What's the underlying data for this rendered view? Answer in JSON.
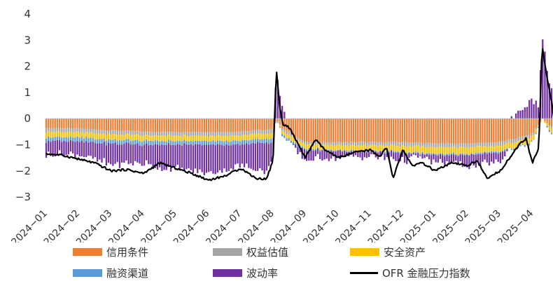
{
  "chart_data": {
    "type": "bar",
    "title": "",
    "xlabel": "",
    "ylabel": "",
    "ylim": [
      -3,
      4
    ],
    "y_ticks": [
      "4",
      "3",
      "2",
      "1",
      "0",
      "−1",
      "−2",
      "−3"
    ],
    "x_ticks": [
      "2024−01",
      "2024−02",
      "2024−03",
      "2024−04",
      "2024−05",
      "2024−06",
      "2024−07",
      "2024−08",
      "2024−09",
      "2024−10",
      "2024−11",
      "2024−12",
      "2025−01",
      "2025−02",
      "2025−03",
      "2025−04"
    ],
    "stacked": true,
    "colors": {
      "credit": "#ed7d31",
      "equity": "#a5a5a5",
      "safe": "#ffc000",
      "funding": "#5b9bd5",
      "volatility": "#7030a0",
      "index": "#000000"
    },
    "legend": {
      "credit": "信用条件",
      "equity": "权益估值",
      "safe": "安全资产",
      "funding": "融资渠道",
      "volatility": "波动率",
      "index": "OFR 金融压力指数"
    },
    "keyframes_note": "monthly approximate values; daily series interpolated",
    "series": [
      {
        "name": "信用条件",
        "key": "credit",
        "t": [
          0,
          1,
          2,
          3,
          4,
          5,
          6,
          7,
          7.1,
          7.3,
          8,
          9,
          10,
          11,
          12,
          13,
          14,
          15,
          15.3,
          15.7
        ],
        "values": [
          -0.35,
          -0.38,
          -0.45,
          -0.5,
          -0.5,
          -0.5,
          -0.5,
          -0.4,
          0,
          -0.4,
          -0.9,
          -0.9,
          -0.9,
          -0.9,
          -0.95,
          -0.95,
          -0.9,
          -0.6,
          0,
          -0.4
        ]
      },
      {
        "name": "权益估值",
        "key": "equity",
        "t": [
          0,
          7,
          7.1,
          7.3,
          8,
          12,
          13,
          14,
          15,
          15.3,
          15.7
        ],
        "values": [
          -0.15,
          -0.15,
          0,
          -0.1,
          -0.1,
          -0.15,
          -0.15,
          -0.15,
          -0.1,
          0,
          -0.1
        ]
      },
      {
        "name": "安全资产",
        "key": "safe",
        "t": [
          0,
          7,
          7.1,
          7.3,
          8,
          12,
          13,
          14,
          15,
          15.3,
          15.7
        ],
        "values": [
          -0.2,
          -0.2,
          0,
          -0.15,
          -0.15,
          -0.25,
          -0.25,
          -0.2,
          -0.2,
          0,
          -0.25
        ]
      },
      {
        "name": "融资渠道",
        "key": "funding",
        "t": [
          0,
          7,
          7.1,
          7.3,
          8,
          12,
          13,
          14,
          15,
          15.3,
          15.7
        ],
        "values": [
          -0.15,
          -0.15,
          0,
          -0.1,
          -0.05,
          -0.05,
          -0.05,
          -0.05,
          -0.05,
          0,
          -0.1
        ]
      },
      {
        "name": "波动率",
        "key": "volatility",
        "t": [
          0,
          1,
          2,
          3,
          3.5,
          4,
          4.5,
          5,
          6,
          6.8,
          7,
          7.1,
          7.2,
          7.4,
          8,
          8.5,
          9,
          9.5,
          10,
          10.5,
          11,
          11.5,
          12,
          12.5,
          13,
          13.5,
          14,
          14.5,
          15,
          15.2,
          15.3,
          15.5,
          15.7
        ],
        "values": [
          -0.5,
          -0.5,
          -0.8,
          -0.7,
          -0.9,
          -0.9,
          -1.0,
          -1.1,
          -0.8,
          -1.1,
          -0.6,
          1.7,
          1.0,
          0,
          -0.4,
          -0.3,
          -0.25,
          -0.2,
          -0.2,
          -0.2,
          -0.3,
          -0.1,
          -0.3,
          -0.3,
          -0.4,
          -0.4,
          -0.35,
          0.2,
          0.7,
          0.5,
          3.2,
          1.5,
          0.8
        ]
      },
      {
        "name": "OFR 金融压力指数",
        "key": "index",
        "type": "line",
        "t": [
          0,
          0.5,
          1,
          1.5,
          2,
          2.5,
          3,
          3.5,
          4,
          4.5,
          5,
          5.5,
          6,
          6.5,
          6.8,
          7,
          7.1,
          7.2,
          7.3,
          7.5,
          8,
          8.3,
          8.6,
          9,
          9.5,
          10,
          10.3,
          10.5,
          10.7,
          11,
          11.3,
          11.6,
          12,
          12.5,
          13,
          13.3,
          13.6,
          14,
          14.3,
          14.6,
          14.8,
          15,
          15.2,
          15.3,
          15.45,
          15.6,
          15.7,
          15.8
        ],
        "values": [
          -1.35,
          -1.4,
          -1.55,
          -1.7,
          -2.0,
          -1.95,
          -2.1,
          -1.7,
          -1.9,
          -2.1,
          -2.35,
          -2.2,
          -1.9,
          -2.3,
          -2.3,
          -1.6,
          1.9,
          0.5,
          -0.2,
          -0.35,
          -1.5,
          -0.8,
          -1.2,
          -1.5,
          -1.3,
          -1.2,
          -1.45,
          -1.1,
          -2.3,
          -1.2,
          -1.8,
          -1.7,
          -2.0,
          -1.7,
          -1.8,
          -1.6,
          -2.3,
          -2.0,
          -1.5,
          -1.0,
          -0.75,
          -1.7,
          -1.1,
          2.8,
          1.6,
          0.6,
          -0.3,
          -0.2
        ]
      }
    ]
  }
}
